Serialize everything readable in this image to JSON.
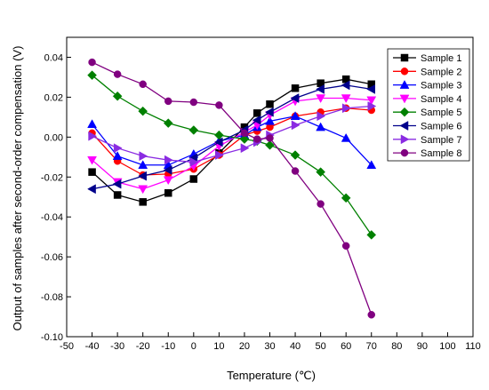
{
  "chart_data": {
    "type": "line",
    "title": "",
    "xlabel": "Temperature (℃)",
    "ylabel": "Output of samples after second-order compensation (V)",
    "xlim": [
      -50,
      110
    ],
    "ylim": [
      -0.1,
      0.05
    ],
    "xticks": [
      -50,
      -40,
      -30,
      -20,
      -10,
      0,
      10,
      20,
      30,
      40,
      50,
      60,
      70,
      80,
      90,
      100,
      110
    ],
    "yticks": [
      -0.1,
      -0.08,
      -0.06,
      -0.04,
      -0.02,
      0.0,
      0.02,
      0.04
    ],
    "ytick_labels": [
      "-0.10",
      "-0.08",
      "-0.06",
      "-0.04",
      "-0.02",
      "0.00",
      "0.02",
      "0.04"
    ],
    "grid": false,
    "legend_position": "top-right",
    "x": [
      -40,
      -30,
      -20,
      -10,
      0,
      10,
      20,
      25,
      30,
      40,
      50,
      60,
      70
    ],
    "series": [
      {
        "name": "Sample 1",
        "color": "#000000",
        "marker": "square",
        "values": [
          -0.0175,
          -0.029,
          -0.0325,
          -0.028,
          -0.021,
          -0.008,
          0.005,
          0.012,
          0.0165,
          0.0245,
          0.027,
          0.029,
          0.0265
        ]
      },
      {
        "name": "Sample 2",
        "color": "#ff0000",
        "marker": "circle",
        "values": [
          0.002,
          -0.012,
          -0.019,
          -0.0185,
          -0.016,
          -0.009,
          0.001,
          0.003,
          0.005,
          0.0105,
          0.0125,
          0.0145,
          0.0135
        ]
      },
      {
        "name": "Sample 3",
        "color": "#0000ff",
        "marker": "triangle-up",
        "values": [
          0.0065,
          -0.0095,
          -0.014,
          -0.014,
          -0.0085,
          -0.002,
          0.001,
          0.005,
          0.008,
          0.0105,
          0.005,
          -0.0005,
          -0.014
        ]
      },
      {
        "name": "Sample 4",
        "color": "#ff00ff",
        "marker": "triangle-down",
        "values": [
          -0.0115,
          -0.0225,
          -0.026,
          -0.0215,
          -0.0145,
          -0.0045,
          0.0025,
          0.006,
          0.011,
          0.018,
          0.0195,
          0.0195,
          0.0185
        ]
      },
      {
        "name": "Sample 5",
        "color": "#008000",
        "marker": "diamond",
        "values": [
          0.031,
          0.0205,
          0.013,
          0.007,
          0.0035,
          0.001,
          -0.001,
          -0.002,
          -0.004,
          -0.009,
          -0.0175,
          -0.0305,
          -0.049
        ]
      },
      {
        "name": "Sample 6",
        "color": "#00008b",
        "marker": "triangle-left",
        "values": [
          -0.026,
          -0.0235,
          -0.0195,
          -0.0165,
          -0.0105,
          -0.0025,
          0.0035,
          0.0085,
          0.0125,
          0.0195,
          0.024,
          0.026,
          0.024
        ]
      },
      {
        "name": "Sample 7",
        "color": "#8a2be2",
        "marker": "triangle-right",
        "values": [
          0.0005,
          -0.0055,
          -0.0095,
          -0.0115,
          -0.0125,
          -0.009,
          -0.0055,
          -0.0025,
          0.001,
          0.006,
          0.0105,
          0.0145,
          0.0155
        ]
      },
      {
        "name": "Sample 8",
        "color": "#800080",
        "marker": "circle",
        "values": [
          0.0375,
          0.0315,
          0.0265,
          0.018,
          0.0175,
          0.016,
          0.002,
          -0.001,
          -0.0005,
          -0.017,
          -0.0335,
          -0.0545,
          -0.089
        ]
      }
    ]
  }
}
